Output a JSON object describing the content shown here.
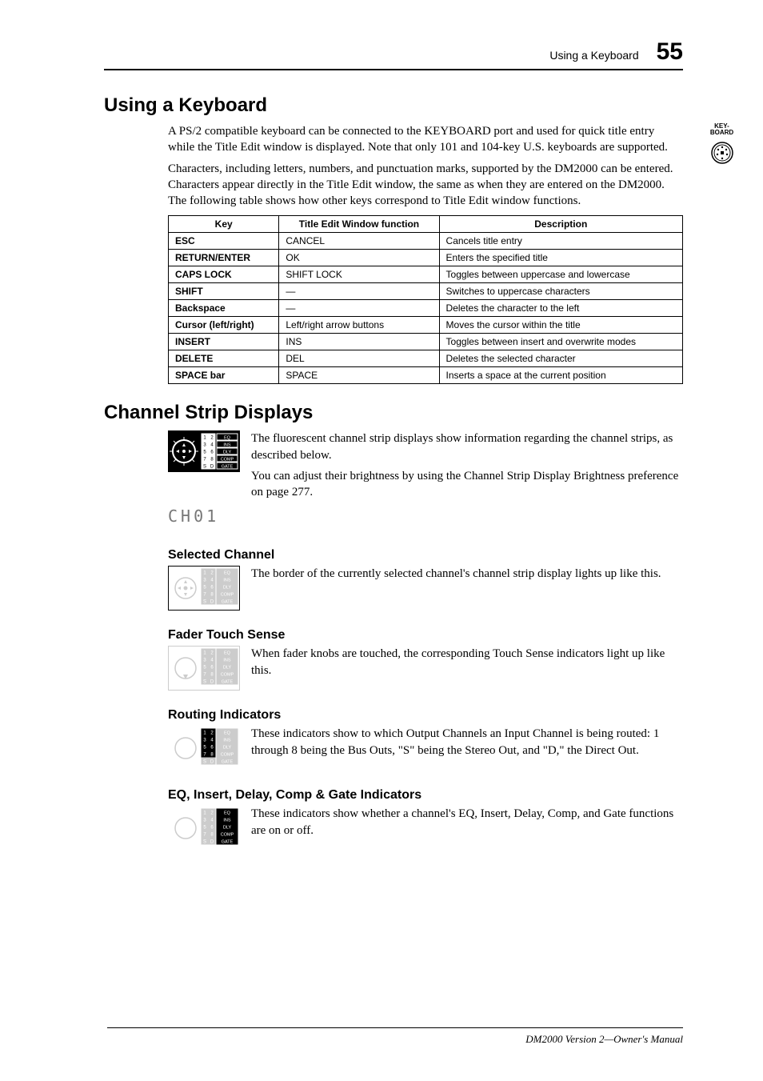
{
  "header": {
    "section": "Using a Keyboard",
    "page": "55"
  },
  "sidelabel": {
    "line1": "KEY-",
    "line2": "BOARD"
  },
  "s1": {
    "title": "Using a Keyboard",
    "p1": "A PS/2 compatible keyboard can be connected to the KEYBOARD port and used for quick title entry while the Title Edit window is displayed. Note that only 101 and 104-key U.S. keyboards are supported.",
    "p2": "Characters, including letters, numbers, and punctuation marks, supported by the DM2000 can be entered. Characters appear directly in the Title Edit window, the same as when they are entered on the DM2000. The following table shows how other keys correspond to Title Edit window functions."
  },
  "table": {
    "headers": [
      "Key",
      "Title Edit Window function",
      "Description"
    ],
    "rows": [
      [
        "ESC",
        "CANCEL",
        "Cancels title entry"
      ],
      [
        "RETURN/ENTER",
        "OK",
        "Enters the specified title"
      ],
      [
        "CAPS LOCK",
        "SHIFT LOCK",
        "Toggles between uppercase and lowercase"
      ],
      [
        "SHIFT",
        "—",
        "Switches to uppercase characters"
      ],
      [
        "Backspace",
        "—",
        "Deletes the character to the left"
      ],
      [
        "Cursor (left/right)",
        "Left/right arrow buttons",
        "Moves the cursor within the title"
      ],
      [
        "INSERT",
        "INS",
        "Toggles between insert and overwrite modes"
      ],
      [
        "DELETE",
        "DEL",
        "Deletes the selected character"
      ],
      [
        "SPACE bar",
        "SPACE",
        "Inserts a space at the current position"
      ]
    ]
  },
  "s2": {
    "title": "Channel Strip Displays",
    "p1": "The fluorescent channel strip displays show information regarding the channel strips, as described below.",
    "p2": "You can adjust their brightness by using the Channel Strip Display Brightness preference on page 277."
  },
  "disp_label": "CH01",
  "sel": {
    "title": "Selected Channel",
    "p": "The border of the currently selected channel's channel strip display lights up like this."
  },
  "fader": {
    "title": "Fader Touch Sense",
    "p": "When fader knobs are touched, the corresponding Touch Sense indicators light up like this."
  },
  "routing": {
    "title": "Routing Indicators",
    "p": "These indicators show to which Output Channels an Input Channel is being routed: 1 through 8 being the Bus Outs, \"S\" being the Stereo Out, and \"D,\" the Direct Out."
  },
  "eq": {
    "title": "EQ, Insert, Delay, Comp & Gate Indicators",
    "p": "These indicators show whether a channel's EQ, Insert, Delay, Comp, and Gate functions are on or off."
  },
  "footer": "DM2000 Version 2—Owner's Manual",
  "iconrows": [
    "EQ",
    "INS",
    "DLY",
    "COMP",
    "GATE"
  ]
}
